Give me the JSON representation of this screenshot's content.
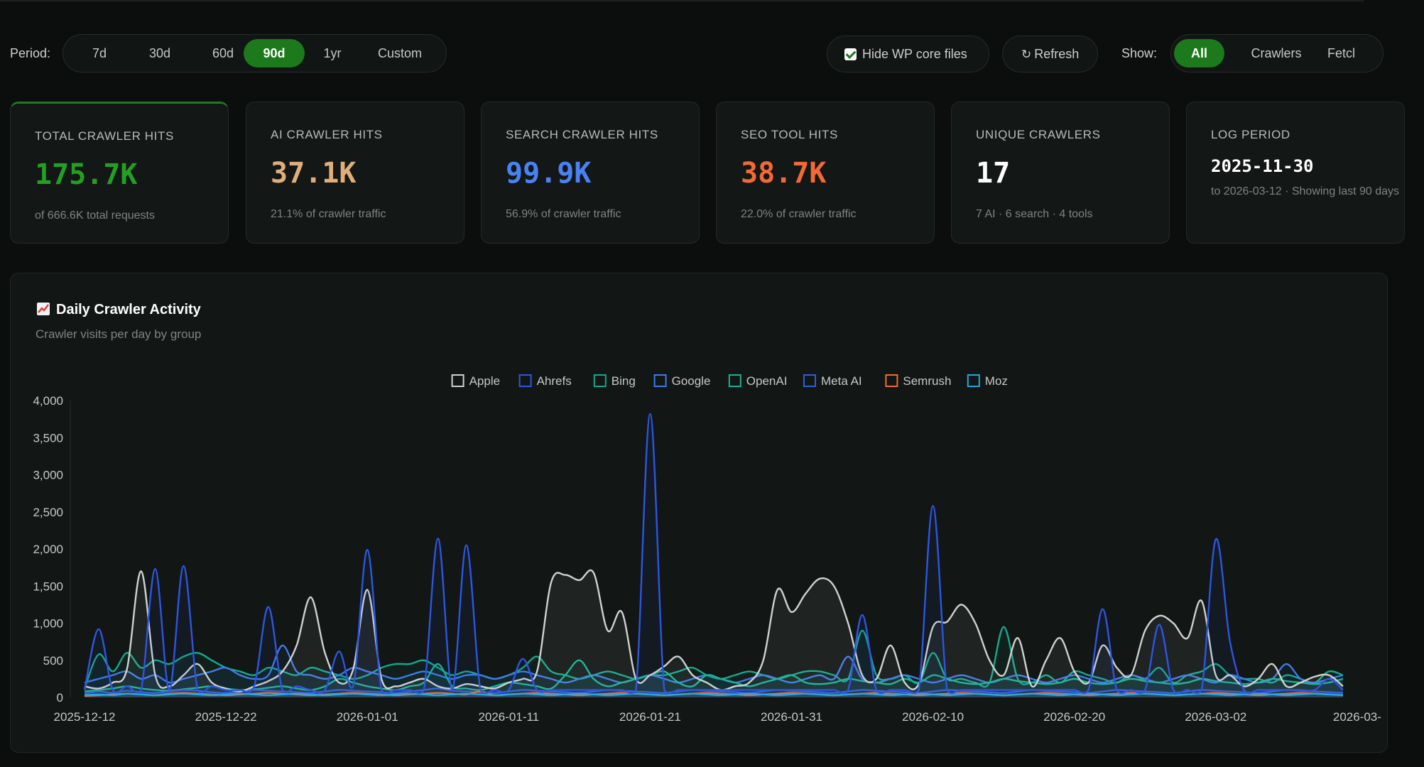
{
  "toolbar": {
    "period_label": "Period:",
    "periods": [
      "7d",
      "30d",
      "60d",
      "90d",
      "1yr",
      "Custom"
    ],
    "active_period": "90d",
    "hide_wp_label": "Hide WP core files",
    "refresh_label": "Refresh",
    "show_label": "Show:",
    "show_options": [
      "All",
      "Crawlers",
      "Fetcl"
    ],
    "active_show": "All"
  },
  "cards": [
    {
      "label": "TOTAL CRAWLER HITS",
      "value": "175.7K",
      "sub": "of 666.6K total requests",
      "color": "#23a023"
    },
    {
      "label": "AI CRAWLER HITS",
      "value": "37.1K",
      "sub": "21.1% of crawler traffic",
      "color": "#e0ae7a"
    },
    {
      "label": "SEARCH CRAWLER HITS",
      "value": "99.9K",
      "sub": "56.9% of crawler traffic",
      "color": "#4a82f4"
    },
    {
      "label": "SEO TOOL HITS",
      "value": "38.7K",
      "sub": "22.0% of crawler traffic",
      "color": "#f26a35"
    },
    {
      "label": "UNIQUE CRAWLERS",
      "value": "17",
      "sub": "7 AI · 6 search · 4 tools",
      "color": "#ffffff"
    },
    {
      "label": "LOG PERIOD",
      "value": "2025-11-30",
      "sub": "to 2026-03-12 · Showing last 90 days",
      "color": "#ffffff"
    }
  ],
  "panel": {
    "title": "Daily Crawler Activity",
    "subtitle": "Crawler visits per day by group"
  },
  "chart_data": {
    "type": "line",
    "title": "Daily Crawler Activity",
    "subtitle": "Crawler visits per day by group",
    "legend_position": "top-center",
    "grid": false,
    "ylim": [
      0,
      4000
    ],
    "y_ticks": [
      "0",
      "500",
      "1,000",
      "1,500",
      "2,000",
      "2,500",
      "3,000",
      "3,500",
      "4,000"
    ],
    "x_tick_labels": [
      "2025-12-12",
      "2025-12-22",
      "2026-01-01",
      "2026-01-11",
      "2026-01-21",
      "2026-01-31",
      "2026-02-10",
      "2026-02-20",
      "2026-03-02",
      "2026-03-"
    ],
    "x": [
      "2025-12-12",
      "2025-12-13",
      "2025-12-14",
      "2025-12-15",
      "2025-12-16",
      "2025-12-17",
      "2025-12-18",
      "2025-12-19",
      "2025-12-20",
      "2025-12-21",
      "2025-12-22",
      "2025-12-23",
      "2025-12-24",
      "2025-12-25",
      "2025-12-26",
      "2025-12-27",
      "2025-12-28",
      "2025-12-29",
      "2025-12-30",
      "2025-12-31",
      "2026-01-01",
      "2026-01-02",
      "2026-01-03",
      "2026-01-04",
      "2026-01-05",
      "2026-01-06",
      "2026-01-07",
      "2026-01-08",
      "2026-01-09",
      "2026-01-10",
      "2026-01-11",
      "2026-01-12",
      "2026-01-13",
      "2026-01-14",
      "2026-01-15",
      "2026-01-16",
      "2026-01-17",
      "2026-01-18",
      "2026-01-19",
      "2026-01-20",
      "2026-01-21",
      "2026-01-22",
      "2026-01-23",
      "2026-01-24",
      "2026-01-25",
      "2026-01-26",
      "2026-01-27",
      "2026-01-28",
      "2026-01-29",
      "2026-01-30",
      "2026-01-31",
      "2026-02-01",
      "2026-02-02",
      "2026-02-03",
      "2026-02-04",
      "2026-02-05",
      "2026-02-06",
      "2026-02-07",
      "2026-02-08",
      "2026-02-09",
      "2026-02-10",
      "2026-02-11",
      "2026-02-12",
      "2026-02-13",
      "2026-02-14",
      "2026-02-15",
      "2026-02-16",
      "2026-02-17",
      "2026-02-18",
      "2026-02-19",
      "2026-02-20",
      "2026-02-21",
      "2026-02-22",
      "2026-02-23",
      "2026-02-24",
      "2026-02-25",
      "2026-02-26",
      "2026-02-27",
      "2026-02-28",
      "2026-03-01",
      "2026-03-02",
      "2026-03-03",
      "2026-03-04",
      "2026-03-05",
      "2026-03-06",
      "2026-03-07",
      "2026-03-08",
      "2026-03-09",
      "2026-03-10",
      "2026-03-11"
    ],
    "series": [
      {
        "name": "Apple",
        "color": "#cfd2cf",
        "values": [
          150,
          120,
          200,
          380,
          1700,
          300,
          150,
          300,
          450,
          200,
          120,
          80,
          150,
          220,
          350,
          700,
          1350,
          600,
          200,
          380,
          1450,
          250,
          150,
          200,
          250,
          150,
          120,
          180,
          150,
          120,
          200,
          250,
          350,
          1550,
          1650,
          1580,
          1680,
          900,
          1150,
          250,
          300,
          420,
          550,
          300,
          200,
          100,
          150,
          200,
          500,
          1450,
          1150,
          1400,
          1600,
          1500,
          1000,
          300,
          250,
          700,
          200,
          180,
          950,
          1020,
          1250,
          1000,
          500,
          300,
          800,
          150,
          500,
          800,
          350,
          200,
          700,
          400,
          300,
          900,
          1100,
          1000,
          800,
          1300,
          300,
          300,
          150,
          250,
          450,
          150,
          200,
          280,
          300,
          150
        ]
      },
      {
        "name": "Ahrefs",
        "color": "#2e55e2",
        "values": [
          100,
          920,
          100,
          150,
          100,
          1730,
          100,
          1770,
          100,
          150,
          100,
          100,
          150,
          1220,
          100,
          150,
          100,
          100,
          620,
          150,
          1990,
          100,
          100,
          100,
          100,
          2140,
          100,
          2050,
          100,
          100,
          100,
          520,
          100,
          100,
          100,
          100,
          100,
          100,
          100,
          100,
          3820,
          100,
          100,
          100,
          100,
          100,
          100,
          100,
          100,
          100,
          100,
          100,
          100,
          100,
          100,
          1110,
          100,
          100,
          100,
          100,
          2580,
          100,
          100,
          100,
          100,
          100,
          100,
          100,
          100,
          100,
          100,
          100,
          1190,
          100,
          100,
          100,
          980,
          100,
          100,
          100,
          2130,
          760,
          100,
          100,
          100,
          100,
          100,
          100,
          250,
          100
        ]
      },
      {
        "name": "Bing",
        "color": "#15a88c",
        "values": [
          120,
          580,
          350,
          600,
          400,
          500,
          450,
          550,
          600,
          500,
          400,
          350,
          300,
          400,
          350,
          300,
          400,
          350,
          300,
          250,
          300,
          400,
          450,
          450,
          500,
          400,
          300,
          350,
          300,
          250,
          300,
          400,
          550,
          350,
          300,
          250,
          300,
          350,
          300,
          250,
          300,
          300,
          350,
          400,
          300,
          250,
          300,
          350,
          300,
          250,
          300,
          350,
          350,
          300,
          250,
          900,
          300,
          250,
          300,
          200,
          600,
          250,
          250,
          200,
          200,
          950,
          250,
          200,
          300,
          200,
          350,
          300,
          250,
          200,
          300,
          250,
          400,
          200,
          300,
          350,
          450,
          300,
          250,
          250,
          200,
          300,
          250,
          200,
          350,
          300
        ]
      },
      {
        "name": "Google",
        "color": "#3f7be8",
        "values": [
          200,
          250,
          300,
          350,
          250,
          300,
          200,
          250,
          300,
          350,
          400,
          300,
          250,
          300,
          700,
          350,
          300,
          250,
          300,
          400,
          350,
          300,
          250,
          300,
          350,
          300,
          250,
          300,
          300,
          250,
          300,
          350,
          300,
          250,
          200,
          250,
          300,
          250,
          200,
          250,
          300,
          250,
          200,
          250,
          300,
          250,
          200,
          250,
          300,
          250,
          200,
          250,
          300,
          250,
          550,
          250,
          200,
          250,
          300,
          250,
          200,
          250,
          300,
          250,
          200,
          250,
          300,
          250,
          200,
          250,
          300,
          250,
          200,
          250,
          300,
          250,
          200,
          250,
          300,
          250,
          200,
          300,
          250,
          200,
          250,
          450,
          250,
          200,
          250,
          300
        ]
      },
      {
        "name": "OpenAI",
        "color": "#1ab194",
        "values": [
          80,
          100,
          120,
          150,
          120,
          100,
          90,
          110,
          130,
          150,
          120,
          100,
          110,
          130,
          150,
          120,
          100,
          150,
          250,
          200,
          150,
          120,
          100,
          150,
          200,
          450,
          150,
          120,
          100,
          150,
          200,
          180,
          150,
          120,
          300,
          500,
          250,
          150,
          200,
          250,
          300,
          350,
          200,
          150,
          300,
          250,
          200,
          150,
          200,
          250,
          300,
          200,
          180,
          200,
          250,
          220,
          200,
          180,
          250,
          200,
          300,
          250,
          200,
          180,
          200,
          250,
          220,
          200,
          180,
          200,
          250,
          200,
          180,
          200,
          250,
          220,
          200,
          180,
          200,
          250,
          220,
          200,
          180,
          200,
          250,
          220,
          200,
          180,
          200,
          250
        ]
      },
      {
        "name": "Meta AI",
        "color": "#2e5fd8",
        "values": [
          50,
          80,
          60,
          90,
          70,
          60,
          80,
          100,
          90,
          70,
          60,
          80,
          100,
          90,
          80,
          70,
          60,
          80,
          100,
          90,
          80,
          70,
          60,
          80,
          100,
          120,
          90,
          80,
          70,
          60,
          80,
          100,
          90,
          80,
          70,
          60,
          80,
          100,
          90,
          80,
          70,
          60,
          80,
          100,
          90,
          80,
          70,
          60,
          80,
          100,
          90,
          80,
          70,
          60,
          80,
          100,
          90,
          80,
          70,
          60,
          80,
          100,
          90,
          80,
          70,
          60,
          80,
          100,
          90,
          80,
          70,
          60,
          80,
          100,
          90,
          80,
          70,
          60,
          80,
          100,
          90,
          80,
          70,
          60,
          80,
          100,
          90,
          80,
          70,
          60
        ]
      },
      {
        "name": "Semrush",
        "color": "#f26a35",
        "values": [
          20,
          30,
          40,
          50,
          40,
          30,
          50,
          60,
          50,
          40,
          30,
          40,
          50,
          60,
          50,
          40,
          30,
          40,
          50,
          60,
          50,
          40,
          30,
          40,
          50,
          60,
          50,
          40,
          80,
          30,
          40,
          50,
          60,
          50,
          40,
          30,
          40,
          50,
          60,
          50,
          40,
          30,
          40,
          50,
          60,
          50,
          40,
          30,
          40,
          50,
          60,
          50,
          40,
          30,
          40,
          50,
          60,
          50,
          40,
          30,
          40,
          50,
          60,
          50,
          40,
          30,
          40,
          50,
          60,
          50,
          40,
          30,
          40,
          50,
          60,
          50,
          40,
          30,
          40,
          50,
          60,
          50,
          40,
          30,
          40,
          50,
          60,
          50,
          40,
          30
        ]
      },
      {
        "name": "Moz",
        "color": "#22a7e0",
        "values": [
          30,
          40,
          30,
          50,
          40,
          30,
          40,
          50,
          40,
          30,
          40,
          50,
          40,
          30,
          40,
          50,
          40,
          30,
          40,
          50,
          40,
          30,
          40,
          50,
          40,
          30,
          40,
          50,
          40,
          30,
          40,
          50,
          40,
          30,
          40,
          50,
          40,
          30,
          40,
          50,
          40,
          30,
          40,
          50,
          40,
          30,
          40,
          50,
          40,
          30,
          40,
          50,
          40,
          30,
          40,
          50,
          40,
          30,
          40,
          50,
          40,
          30,
          40,
          50,
          40,
          30,
          40,
          50,
          40,
          30,
          40,
          50,
          40,
          30,
          40,
          50,
          40,
          30,
          40,
          50,
          40,
          30,
          40,
          50,
          40,
          30,
          40,
          50,
          40,
          30
        ]
      }
    ]
  }
}
